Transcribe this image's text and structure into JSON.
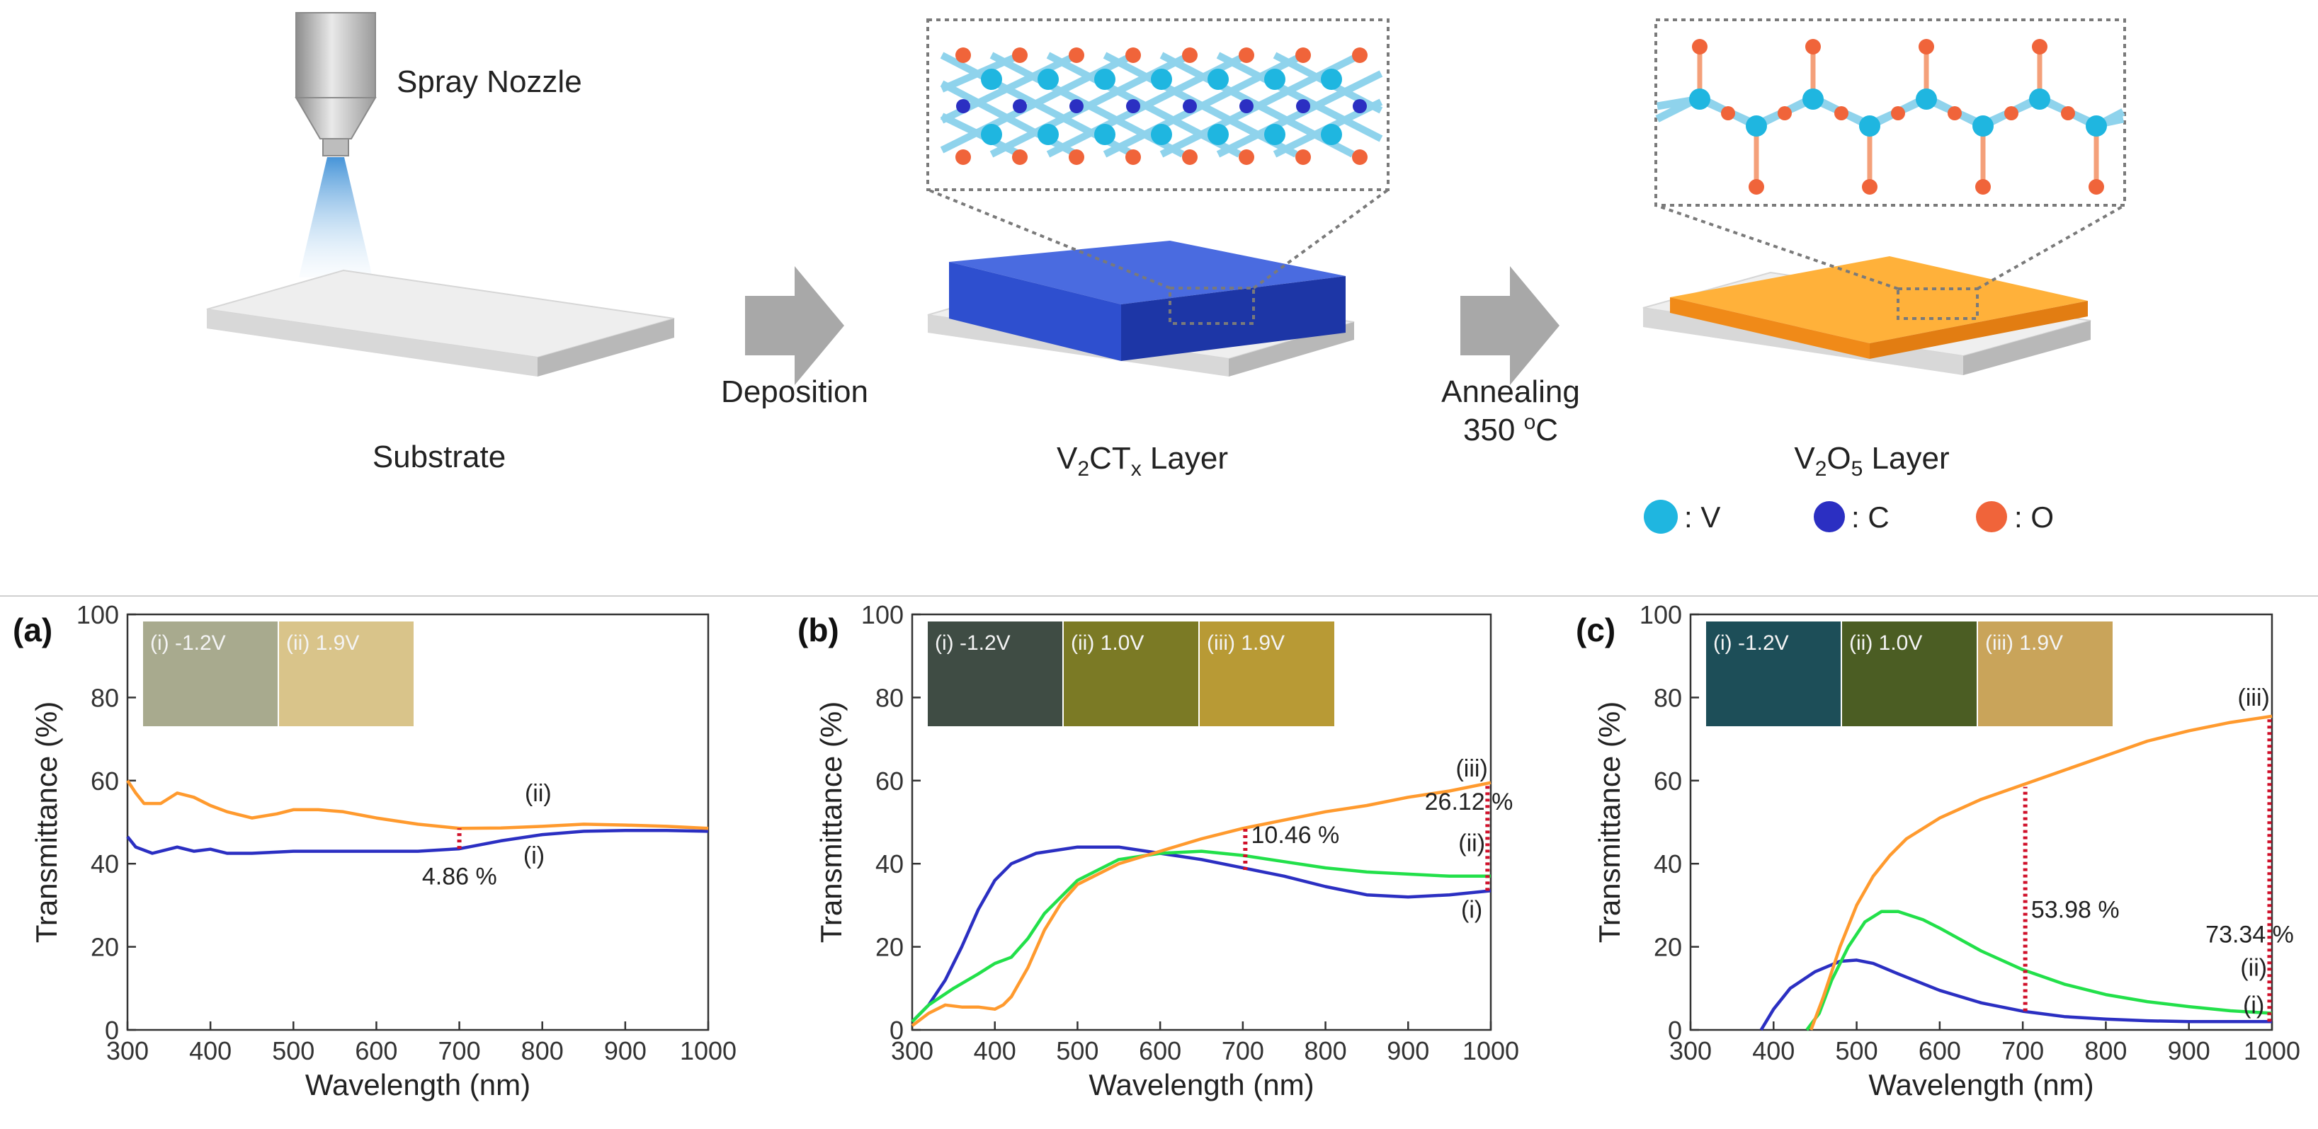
{
  "schematic": {
    "spray_nozzle_label": "Spray Nozzle",
    "substrate_label": "Substrate",
    "deposition_label": "Deposition",
    "v2ctx_label": {
      "base1": "V",
      "sub1": "2",
      "base2": "CT",
      "sub2": "x",
      "tail": " Layer"
    },
    "annealing_label": "Annealing",
    "anneal_temp_label": {
      "base": "350 ",
      "sup": "o",
      "tail": "C"
    },
    "v2o5_label": {
      "base1": "V",
      "sub1": "2",
      "base2": "O",
      "sub2": "5",
      "tail": " Layer"
    },
    "legend": [
      {
        "label": ": V",
        "color": "#1fb6e0"
      },
      {
        "label": ": C",
        "color": "#2b2fc2"
      },
      {
        "label": ": O",
        "color": "#f0643a"
      }
    ],
    "colors": {
      "substrate": "#e6e6e6",
      "v2ctx": "#2e4fcf",
      "v2o5": "#ffa51e",
      "arrow": "#a8a8a8"
    }
  },
  "chart_data": [
    {
      "panel": "(a)",
      "type": "line",
      "xlabel": "Wavelength (nm)",
      "ylabel": "Transmittance (%)",
      "xlim": [
        300,
        1000
      ],
      "ylim": [
        0,
        100
      ],
      "xticks": [
        "300",
        "400",
        "500",
        "600",
        "700",
        "800",
        "900",
        "1000"
      ],
      "yticks": [
        "0",
        "20",
        "40",
        "60",
        "80",
        "100"
      ],
      "swatches": [
        {
          "label": "(i) -1.2V",
          "color": "#a8aa8e"
        },
        {
          "label": "(ii) 1.9V",
          "color": "#d9c48a"
        }
      ],
      "series": [
        {
          "name": "(i)",
          "color": "#2b2fc2",
          "x": [
            300,
            310,
            330,
            360,
            380,
            400,
            420,
            450,
            500,
            550,
            600,
            650,
            700,
            750,
            800,
            850,
            900,
            950,
            1000
          ],
          "y": [
            46.5,
            44,
            42.5,
            44,
            43,
            43.5,
            42.5,
            42.5,
            43,
            43,
            43,
            43,
            43.6,
            45.5,
            47,
            47.8,
            48,
            48,
            47.8
          ]
        },
        {
          "name": "(ii)",
          "color": "#ff9a2e",
          "x": [
            300,
            310,
            320,
            340,
            360,
            380,
            400,
            420,
            450,
            480,
            500,
            530,
            560,
            600,
            650,
            700,
            750,
            800,
            850,
            900,
            950,
            1000
          ],
          "y": [
            60,
            57,
            54.5,
            54.5,
            57,
            56,
            54,
            52.5,
            51,
            52,
            53,
            53,
            52.5,
            51,
            49.5,
            48.5,
            48.6,
            49,
            49.5,
            49.3,
            49,
            48.5
          ]
        }
      ],
      "series_labels": [
        {
          "text": "(ii)",
          "x": 795,
          "y": 55
        },
        {
          "text": "(i)",
          "x": 790,
          "y": 40
        }
      ],
      "annotations": [
        {
          "text": "4.86 %",
          "at_x": 700,
          "from": 43.6,
          "to": 48.5,
          "label_x": 655,
          "label_y": 35
        }
      ]
    },
    {
      "panel": "(b)",
      "type": "line",
      "xlabel": "Wavelength (nm)",
      "ylabel": "Transmittance (%)",
      "xlim": [
        300,
        1000
      ],
      "ylim": [
        0,
        100
      ],
      "xticks": [
        "300",
        "400",
        "500",
        "600",
        "700",
        "800",
        "900",
        "1000"
      ],
      "yticks": [
        "0",
        "20",
        "40",
        "60",
        "80",
        "100"
      ],
      "swatches": [
        {
          "label": "(i) -1.2V",
          "color": "#3f4c44"
        },
        {
          "label": "(ii) 1.0V",
          "color": "#7b7a25"
        },
        {
          "label": "(iii) 1.9V",
          "color": "#b89a35"
        }
      ],
      "series": [
        {
          "name": "(i)",
          "color": "#2b2fc2",
          "x": [
            300,
            320,
            340,
            360,
            380,
            400,
            420,
            450,
            500,
            550,
            600,
            650,
            700,
            750,
            800,
            850,
            900,
            950,
            1000
          ],
          "y": [
            2,
            6,
            12,
            20,
            29,
            36,
            40,
            42.5,
            44,
            44,
            42.5,
            41,
            39,
            37,
            34.5,
            32.5,
            32,
            32.5,
            33.5
          ]
        },
        {
          "name": "(ii)",
          "color": "#22e04a",
          "x": [
            300,
            320,
            350,
            380,
            400,
            420,
            440,
            460,
            500,
            550,
            600,
            650,
            700,
            750,
            800,
            850,
            900,
            950,
            1000
          ],
          "y": [
            2,
            6,
            10,
            13.5,
            16,
            17.5,
            22,
            28,
            36,
            41,
            42.5,
            43,
            42,
            40.5,
            39,
            38,
            37.5,
            37,
            37
          ]
        },
        {
          "name": "(iii)",
          "color": "#ff9a2e",
          "x": [
            300,
            320,
            340,
            360,
            380,
            400,
            410,
            420,
            440,
            460,
            480,
            500,
            550,
            600,
            650,
            700,
            750,
            800,
            850,
            900,
            950,
            1000
          ],
          "y": [
            1,
            4,
            6,
            5.5,
            5.5,
            5,
            6,
            8,
            15,
            24,
            30.5,
            35,
            40,
            43,
            46,
            48.5,
            50.5,
            52.5,
            54,
            56,
            57.5,
            59.5
          ]
        }
      ],
      "series_labels": [
        {
          "text": "(iii)",
          "x": 977,
          "y": 61
        },
        {
          "text": "(ii)",
          "x": 977,
          "y": 43
        },
        {
          "text": "(i)",
          "x": 977,
          "y": 27
        }
      ],
      "annotations": [
        {
          "text": "10.46 %",
          "at_x": 703,
          "from": 38.5,
          "to": 48.9,
          "label_x": 710,
          "label_y": 45
        },
        {
          "text": "26.12 %",
          "at_x": 996,
          "from": 33.5,
          "to": 59.5,
          "label_x": 920,
          "label_y": 53
        }
      ]
    },
    {
      "panel": "(c)",
      "type": "line",
      "xlabel": "Wavelength (nm)",
      "ylabel": "Transmittance (%)",
      "xlim": [
        300,
        1000
      ],
      "ylim": [
        0,
        100
      ],
      "xticks": [
        "300",
        "400",
        "500",
        "600",
        "700",
        "800",
        "900",
        "1000"
      ],
      "yticks": [
        "0",
        "20",
        "40",
        "60",
        "80",
        "100"
      ],
      "swatches": [
        {
          "label": "(i) -1.2V",
          "color": "#1d4e58"
        },
        {
          "label": "(ii) 1.0V",
          "color": "#4b5d23"
        },
        {
          "label": "(iii) 1.9V",
          "color": "#c9a45a"
        }
      ],
      "series": [
        {
          "name": "(i)",
          "color": "#2b2fc2",
          "x": [
            385,
            400,
            420,
            450,
            480,
            500,
            520,
            550,
            600,
            650,
            700,
            750,
            800,
            850,
            900,
            950,
            1000
          ],
          "y": [
            0,
            5,
            10,
            14,
            16.5,
            16.8,
            16,
            13.5,
            9.5,
            6.5,
            4.5,
            3.2,
            2.6,
            2.2,
            2,
            2,
            2
          ]
        },
        {
          "name": "(ii)",
          "color": "#22e04a",
          "x": [
            440,
            455,
            470,
            490,
            510,
            530,
            550,
            580,
            600,
            650,
            700,
            750,
            800,
            850,
            900,
            950,
            1000
          ],
          "y": [
            0,
            4,
            12,
            20,
            26,
            28.5,
            28.5,
            26.5,
            24.5,
            19,
            14.5,
            11,
            8.5,
            6.8,
            5.6,
            4.6,
            4
          ]
        },
        {
          "name": "(iii)",
          "color": "#ff9a2e",
          "x": [
            445,
            460,
            480,
            500,
            520,
            540,
            560,
            600,
            650,
            700,
            750,
            800,
            850,
            900,
            950,
            1000
          ],
          "y": [
            0,
            8,
            20,
            30,
            37,
            42,
            46,
            51,
            55.5,
            59,
            62.5,
            66,
            69.5,
            72,
            74,
            75.5
          ]
        }
      ],
      "series_labels": [
        {
          "text": "(iii)",
          "x": 978,
          "y": 78
        },
        {
          "text": "(ii)",
          "x": 978,
          "y": 13
        },
        {
          "text": "(i)",
          "x": 978,
          "y": 4
        }
      ],
      "annotations": [
        {
          "text": "53.98 %",
          "at_x": 703,
          "from": 4.5,
          "to": 58.5,
          "label_x": 710,
          "label_y": 27
        },
        {
          "text": "73.34 %",
          "at_x": 997,
          "from": 2,
          "to": 75.5,
          "label_x": 920,
          "label_y": 21
        }
      ]
    }
  ]
}
